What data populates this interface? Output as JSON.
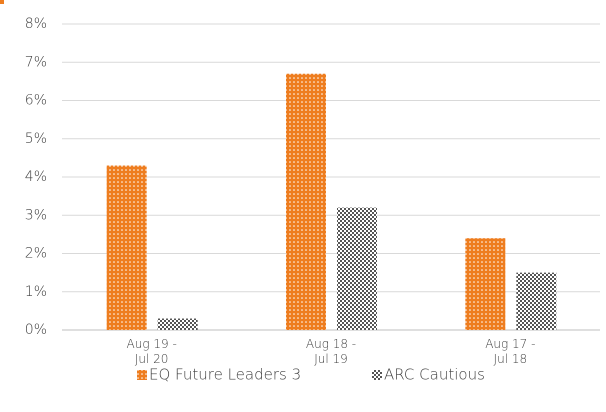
{
  "chart_data": {
    "type": "bar",
    "categories": [
      "Aug 19 - Jul 20",
      "Aug 18 - Jul 19",
      "Aug 17 - Jul 18"
    ],
    "series": [
      {
        "name": "EQ Future Leaders 3",
        "color": "#ee7d1f",
        "values": [
          4.3,
          6.7,
          2.4
        ]
      },
      {
        "name": "ARC Cautious",
        "color": "#555555",
        "values": [
          0.3,
          3.2,
          1.5
        ]
      }
    ],
    "ylim": [
      0,
      8
    ],
    "yticks": [
      {
        "value": 0,
        "label": "0%"
      },
      {
        "value": 1,
        "label": "1%"
      },
      {
        "value": 2,
        "label": "2%"
      },
      {
        "value": 3,
        "label": "3%"
      },
      {
        "value": 4,
        "label": "4%"
      },
      {
        "value": 5,
        "label": "5%"
      },
      {
        "value": 6,
        "label": "6%"
      },
      {
        "value": 7,
        "label": "7%"
      },
      {
        "value": 8,
        "label": "8%"
      }
    ],
    "grid": true,
    "legend": "bottom"
  }
}
